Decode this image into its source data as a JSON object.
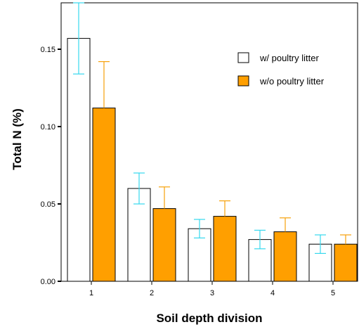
{
  "chart_data": {
    "type": "bar",
    "title": "",
    "xlabel": "Soil depth division",
    "ylabel": "Total N (%)",
    "categories": [
      "1",
      "2",
      "3",
      "4",
      "5"
    ],
    "ylim": [
      0,
      0.18
    ],
    "yticks": [
      0.0,
      0.05,
      0.1,
      0.15
    ],
    "ytick_labels": [
      "0.00",
      "0.05",
      "0.10",
      "0.15"
    ],
    "grid": false,
    "legend_position": "top-right",
    "series": [
      {
        "name": "w/ poultry litter",
        "values": [
          0.157,
          0.06,
          0.034,
          0.027,
          0.024
        ],
        "error": [
          0.023,
          0.01,
          0.006,
          0.006,
          0.006
        ],
        "error_mode": "both",
        "fill": "#ffffff",
        "stroke": "#000000",
        "error_color": "#36d8ee"
      },
      {
        "name": "w/o poultry litter",
        "values": [
          0.112,
          0.047,
          0.042,
          0.032,
          0.024
        ],
        "error": [
          0.03,
          0.014,
          0.01,
          0.009,
          0.006
        ],
        "error_mode": "upper",
        "fill": "#ff9f00",
        "stroke": "#000000",
        "error_color": "#f7a10a"
      }
    ]
  }
}
